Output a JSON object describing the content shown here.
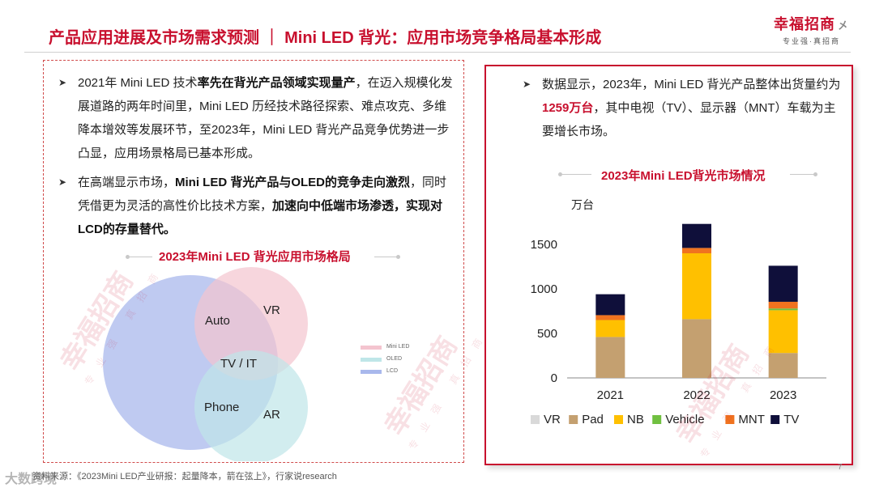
{
  "header": {
    "title": "产品应用进展及市场需求预测 ｜ Mini LED 背光：应用市场竞争格局基本形成",
    "logo_main": "幸福招商",
    "logo_suffix": "㐅",
    "logo_sub": "专业强·真招商"
  },
  "left": {
    "bullet1": {
      "p1": "2021年 Mini LED 技术",
      "b1": "率先在背光产品领域实现量产",
      "p2": "，在迈入规模化发展道路的两年时间里，Mini LED 历经技术路径探索、难点攻克、多维降本增效等发展环节，至2023年，Mini LED 背光产品竞争优势进一步凸显，应用场景格局已基本形成。"
    },
    "bullet2": {
      "p1": "在高端显示市场，",
      "b1": "Mini LED 背光产品与OLED的竞争走向激烈",
      "p2": "，同时凭借更为灵活的高性价比技术方案，",
      "b2": "加速向中低端市场渗透，实现对LCD的存量替代。"
    },
    "venn_title": "2023年Mini LED 背光应用市场格局",
    "venn_labels": [
      "Auto",
      "VR",
      "TV / IT",
      "Phone",
      "AR"
    ],
    "legend": [
      {
        "name": "Mini LED",
        "color": "#f4c4cf"
      },
      {
        "name": "OLED",
        "color": "#bfe6e8"
      },
      {
        "name": "LCD",
        "color": "#a9b8ec"
      }
    ]
  },
  "right": {
    "bullet": {
      "p1": "数据显示，2023年，Mini LED 背光产品整体出货量约为",
      "r1": "1259万台",
      "p2": "，其中电视（TV）、显示器（MNT）车载为主要增长市场。"
    }
  },
  "chart_data": {
    "type": "bar",
    "stacked": true,
    "title": "2023年Mini LED背光市场情况",
    "ylabel": "万台",
    "ylim": [
      0,
      1500
    ],
    "yticks": [
      0,
      500,
      1000,
      1500
    ],
    "categories": [
      "2021",
      "2022",
      "2023"
    ],
    "series": [
      {
        "name": "VR",
        "color": "#d9d9d9",
        "values": [
          0,
          0,
          0
        ]
      },
      {
        "name": "Pad",
        "color": "#c4a070",
        "values": [
          460,
          660,
          280
        ]
      },
      {
        "name": "NB",
        "color": "#ffc000",
        "values": [
          190,
          740,
          480
        ]
      },
      {
        "name": "Vehicle",
        "color": "#70c040",
        "values": [
          0,
          0,
          20
        ]
      },
      {
        "name": "MNT",
        "color": "#f0731f",
        "values": [
          55,
          60,
          75
        ]
      },
      {
        "name": "TV",
        "color": "#0f0f3a",
        "values": [
          235,
          270,
          405
        ]
      }
    ]
  },
  "footer": {
    "source": "资料来源：《2023Mini LED产业研报：起量降本，箭在弦上》，行家说research",
    "page": "7",
    "overlay": "大数跨境"
  },
  "watermark": {
    "text": "幸福招商",
    "sub": "专业强 真招商"
  }
}
